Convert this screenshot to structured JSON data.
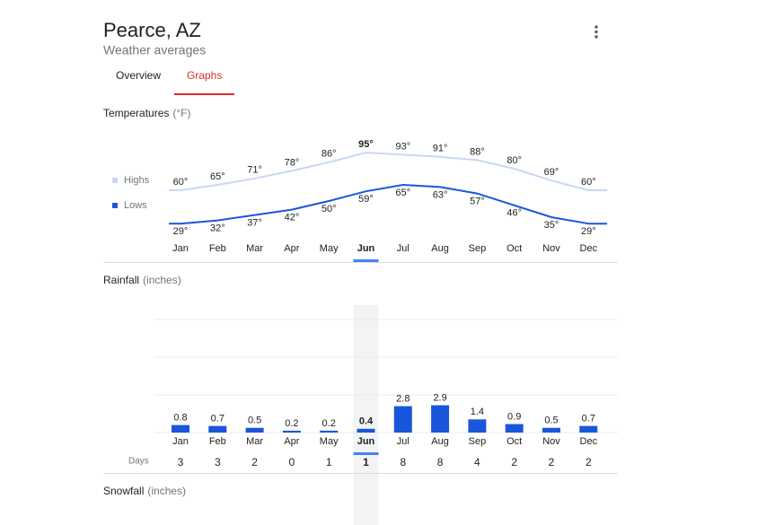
{
  "header": {
    "title": "Pearce, AZ",
    "subtitle": "Weather averages"
  },
  "tabs": [
    "Overview",
    "Graphs"
  ],
  "active_tab": 1,
  "chart_data": [
    {
      "type": "line",
      "title": "Temperatures",
      "unit": "(°F)",
      "selected": 5,
      "categories": [
        "Jan",
        "Feb",
        "Mar",
        "Apr",
        "May",
        "Jun",
        "Jul",
        "Aug",
        "Sep",
        "Oct",
        "Nov",
        "Dec"
      ],
      "series": [
        {
          "name": "Highs",
          "color": "#c9d7f4",
          "values": [
            60,
            65,
            71,
            78,
            86,
            95,
            93,
            91,
            88,
            80,
            69,
            60
          ],
          "value_labels": [
            "60°",
            "65°",
            "71°",
            "78°",
            "86°",
            "95°",
            "93°",
            "91°",
            "88°",
            "80°",
            "69°",
            "60°"
          ]
        },
        {
          "name": "Lows",
          "color": "#1a56db",
          "values": [
            29,
            32,
            37,
            42,
            50,
            59,
            65,
            63,
            57,
            46,
            35,
            29
          ],
          "value_labels": [
            "29°",
            "32°",
            "37°",
            "42°",
            "50°",
            "59°",
            "65°",
            "63°",
            "57°",
            "46°",
            "35°",
            "29°"
          ]
        }
      ]
    },
    {
      "type": "bar",
      "title": "Rainfall",
      "unit": "(inches)",
      "selected": 5,
      "color": "#1a56db",
      "categories": [
        "Jan",
        "Feb",
        "Mar",
        "Apr",
        "May",
        "Jun",
        "Jul",
        "Aug",
        "Sep",
        "Oct",
        "Nov",
        "Dec"
      ],
      "values": [
        0.8,
        0.7,
        0.5,
        0.2,
        0.2,
        0.4,
        2.8,
        2.9,
        1.4,
        0.9,
        0.5,
        0.7
      ],
      "ylim": [
        0,
        12
      ],
      "yticks": [
        0,
        4,
        8,
        12
      ],
      "grid": true,
      "days_label": "Days",
      "days": [
        3,
        3,
        2,
        0,
        1,
        1,
        8,
        8,
        4,
        2,
        2,
        2
      ]
    }
  ],
  "snowfall": {
    "title": "Snowfall",
    "unit": "(inches)"
  }
}
